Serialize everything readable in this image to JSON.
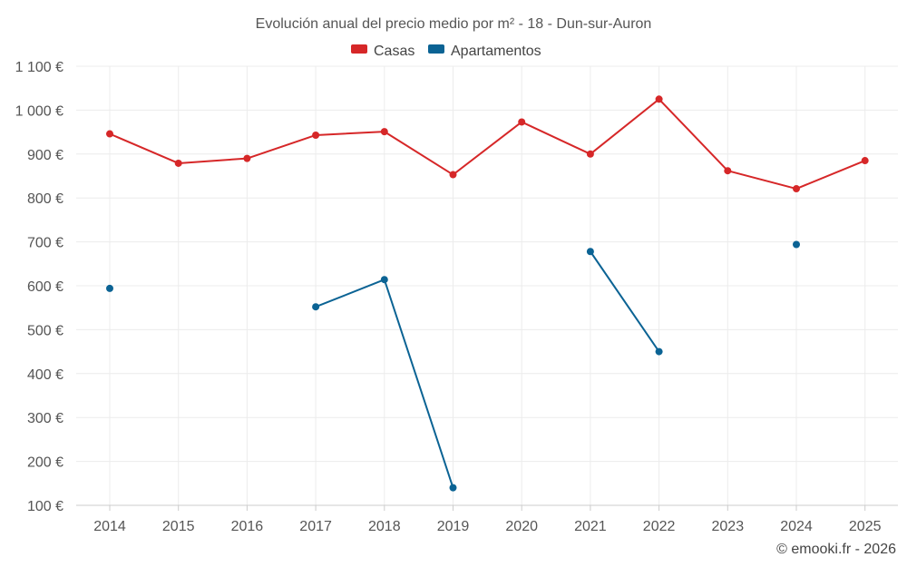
{
  "chart_data": {
    "type": "line",
    "title": "Evolución anual del precio medio por m² - 18 - Dun-sur-Auron",
    "x": [
      "2014",
      "2015",
      "2016",
      "2017",
      "2018",
      "2019",
      "2020",
      "2021",
      "2022",
      "2023",
      "2024",
      "2025"
    ],
    "ylim": [
      100,
      1100
    ],
    "yticks": [
      100,
      200,
      300,
      400,
      500,
      600,
      700,
      800,
      900,
      1000,
      1100
    ],
    "ytick_labels": [
      "100 €",
      "200 €",
      "300 €",
      "400 €",
      "500 €",
      "600 €",
      "700 €",
      "800 €",
      "900 €",
      "1 000 €",
      "1 100 €"
    ],
    "grid": true,
    "legend_position": "top-center",
    "series": [
      {
        "name": "Casas",
        "color": "#d62728",
        "values": [
          946,
          879,
          890,
          943,
          951,
          853,
          973,
          900,
          1025,
          862,
          821,
          885
        ]
      },
      {
        "name": "Apartamentos",
        "color": "#0b6394",
        "values": [
          594,
          null,
          null,
          552,
          614,
          140,
          null,
          678,
          450,
          null,
          694,
          null
        ]
      }
    ],
    "credit": "© emooki.fr - 2026"
  }
}
